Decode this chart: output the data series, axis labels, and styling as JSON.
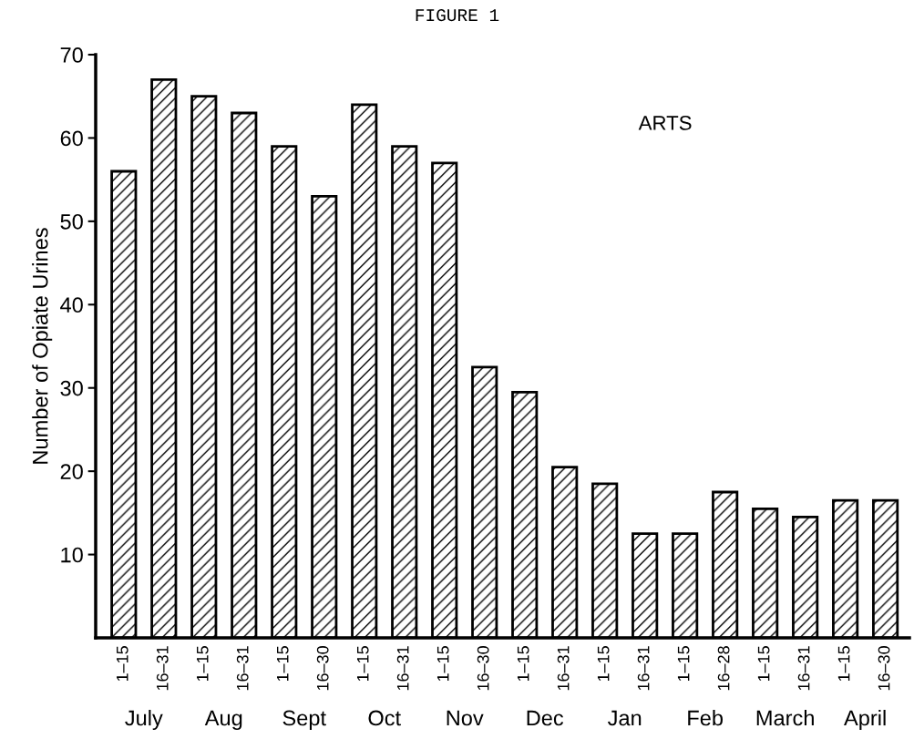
{
  "chart_data": {
    "type": "bar",
    "title": "FIGURE 1",
    "ylabel": "Number of Opiate Urines",
    "categories": [
      "1–15",
      "16–31",
      "1–15",
      "16–31",
      "1–15",
      "16–30",
      "1–15",
      "16–31",
      "1–15",
      "16–30",
      "1–15",
      "16–31",
      "1–15",
      "16–31",
      "1–15",
      "16–28",
      "1–15",
      "16–31",
      "1–15",
      "16–30"
    ],
    "values": [
      56,
      67,
      65,
      63,
      59,
      53,
      64,
      59,
      57,
      32.5,
      29.5,
      20.5,
      18.5,
      12.5,
      12.5,
      17.5,
      15.5,
      14.5,
      16.5,
      16.5
    ],
    "color": "#000000",
    "annotations": [
      "ARTS",
      "July",
      "Aug",
      "Sept",
      "Oct",
      "Nov",
      "Dec",
      "Jan",
      "Feb",
      "March",
      "April"
    ],
    "ylim": [
      0,
      70
    ],
    "yticks": [
      10,
      20,
      30,
      40,
      50,
      60,
      70
    ],
    "grid": false,
    "legend": false
  }
}
